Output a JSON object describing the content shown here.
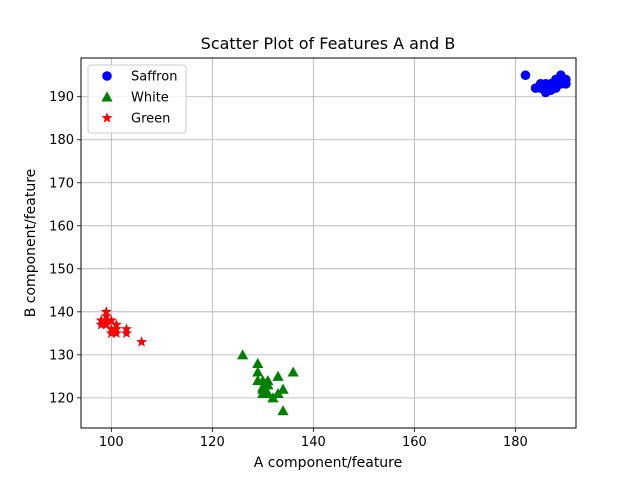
{
  "chart_data": {
    "type": "scatter",
    "title": "Scatter Plot of Features A and B",
    "xlabel": "A component/feature",
    "ylabel": "B component/feature",
    "xlim": [
      94,
      192
    ],
    "ylim": [
      113,
      199
    ],
    "xticks": [
      100,
      120,
      140,
      160,
      180
    ],
    "yticks": [
      120,
      130,
      140,
      150,
      160,
      170,
      180,
      190
    ],
    "grid": true,
    "legend_position": "top-left",
    "series": [
      {
        "name": "Saffron",
        "color": "#0000ff",
        "marker": "circle",
        "points": [
          [
            182,
            195
          ],
          [
            184,
            192
          ],
          [
            185,
            193
          ],
          [
            185,
            192
          ],
          [
            186,
            193
          ],
          [
            186,
            191
          ],
          [
            186,
            192
          ],
          [
            187,
            193
          ],
          [
            187,
            192
          ],
          [
            188,
            193
          ],
          [
            188,
            192
          ],
          [
            188,
            194
          ],
          [
            189,
            195
          ],
          [
            189,
            194
          ],
          [
            189,
            193
          ],
          [
            190,
            194
          ],
          [
            190,
            193
          ],
          [
            187,
            191.5
          ]
        ]
      },
      {
        "name": "White",
        "color": "#008000",
        "marker": "triangle",
        "points": [
          [
            126,
            130
          ],
          [
            129,
            128
          ],
          [
            129,
            126
          ],
          [
            129,
            124
          ],
          [
            130,
            124
          ],
          [
            130,
            122
          ],
          [
            130,
            121
          ],
          [
            131,
            124
          ],
          [
            131,
            123
          ],
          [
            131,
            121
          ],
          [
            132,
            120
          ],
          [
            133,
            125
          ],
          [
            133,
            121
          ],
          [
            134,
            122
          ],
          [
            134,
            117
          ],
          [
            136,
            126
          ],
          [
            130,
            122.5
          ]
        ]
      },
      {
        "name": "Green",
        "color": "#ff0000",
        "marker": "star",
        "points": [
          [
            98,
            137
          ],
          [
            98,
            138
          ],
          [
            99,
            140
          ],
          [
            99,
            139
          ],
          [
            99,
            138
          ],
          [
            99,
            137
          ],
          [
            100,
            138
          ],
          [
            100,
            136
          ],
          [
            100,
            135
          ],
          [
            101,
            137
          ],
          [
            101,
            136
          ],
          [
            101,
            135
          ],
          [
            103,
            136
          ],
          [
            103,
            135
          ],
          [
            106,
            133
          ]
        ]
      }
    ]
  }
}
